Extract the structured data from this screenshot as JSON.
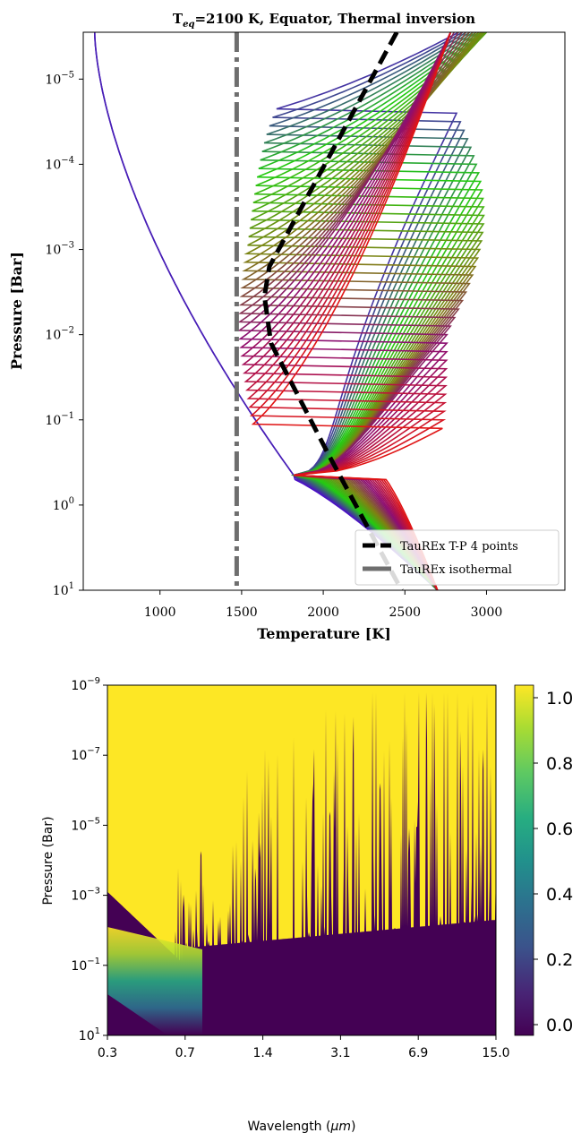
{
  "chart_data": [
    {
      "type": "line",
      "title_main": "T",
      "title_sub": "eq",
      "title_rest": "=2100 K, Equator, Thermal inversion",
      "xlabel": "Temperature [K]",
      "ylabel": "Pressure [Bar]",
      "xlim": [
        530,
        3480
      ],
      "ylim_log10": [
        -5.55,
        1
      ],
      "yscale": "log",
      "yaxis_inverted": true,
      "xticks": [
        {
          "value": 1000,
          "label": "1000"
        },
        {
          "value": 1500,
          "label": "1500"
        },
        {
          "value": 2000,
          "label": "2000"
        },
        {
          "value": 2500,
          "label": "2500"
        },
        {
          "value": 3000,
          "label": "3000"
        }
      ],
      "yticks": [
        {
          "exp": -5,
          "base": "10",
          "sup": "−5"
        },
        {
          "exp": -4,
          "base": "10",
          "sup": "−4"
        },
        {
          "exp": -3,
          "base": "10",
          "sup": "−3"
        },
        {
          "exp": -2,
          "base": "10",
          "sup": "−2"
        },
        {
          "exp": -1,
          "base": "10",
          "sup": "−1"
        },
        {
          "exp": 0,
          "base": "10",
          "sup": "0"
        },
        {
          "exp": 1,
          "base": "10",
          "sup": "1"
        }
      ],
      "series": [
        {
          "name": "TauREx T-P 4 points",
          "color": "#000000",
          "dash": "dashed",
          "points": [
            [
              2450,
              -5.55
            ],
            [
              1670,
              -2.8
            ],
            [
              1640,
              -2.45
            ],
            [
              1680,
              -1.9
            ],
            [
              2030,
              -0.6
            ],
            [
              2480,
              1.0
            ]
          ]
        },
        {
          "name": "TauREx isothermal",
          "color": "#6e6e6e",
          "dash": "dashdot",
          "points": [
            [
              1470,
              -5.55
            ],
            [
              1470,
              1.0
            ]
          ]
        }
      ],
      "profile_family": {
        "description_colors": [
          "#4b0bc8",
          "#22cc11",
          "#7f8012",
          "#8b0d73",
          "#e01515"
        ],
        "count": 40
      },
      "legend_position": "lower right",
      "grid": false
    },
    {
      "type": "heatmap",
      "xlabel": "Wavelength (μm)",
      "ylabel": "Pressure (Bar)",
      "xscale": "log",
      "yscale": "log",
      "yaxis_inverted": true,
      "xlim": [
        0.3,
        15.0
      ],
      "ylim_log10": [
        -9,
        1
      ],
      "xticks": [
        "0.3",
        "0.7",
        "1.4",
        "3.1",
        "6.9",
        "15.0"
      ],
      "yticks": [
        {
          "exp": -9,
          "base": "10",
          "sup": "−9"
        },
        {
          "exp": -7,
          "base": "10",
          "sup": "−7"
        },
        {
          "exp": -5,
          "base": "10",
          "sup": "−5"
        },
        {
          "exp": -3,
          "base": "10",
          "sup": "−3"
        },
        {
          "exp": -1,
          "base": "10",
          "sup": "−1"
        },
        {
          "exp": 1,
          "base": "10",
          "sup": "1"
        }
      ],
      "colorscale": "viridis",
      "colorbar_range": [
        0.0,
        1.0
      ],
      "colorbar_ticks": [
        "0.0",
        "0.2",
        "0.4",
        "0.6",
        "0.8",
        "1.0"
      ]
    }
  ]
}
